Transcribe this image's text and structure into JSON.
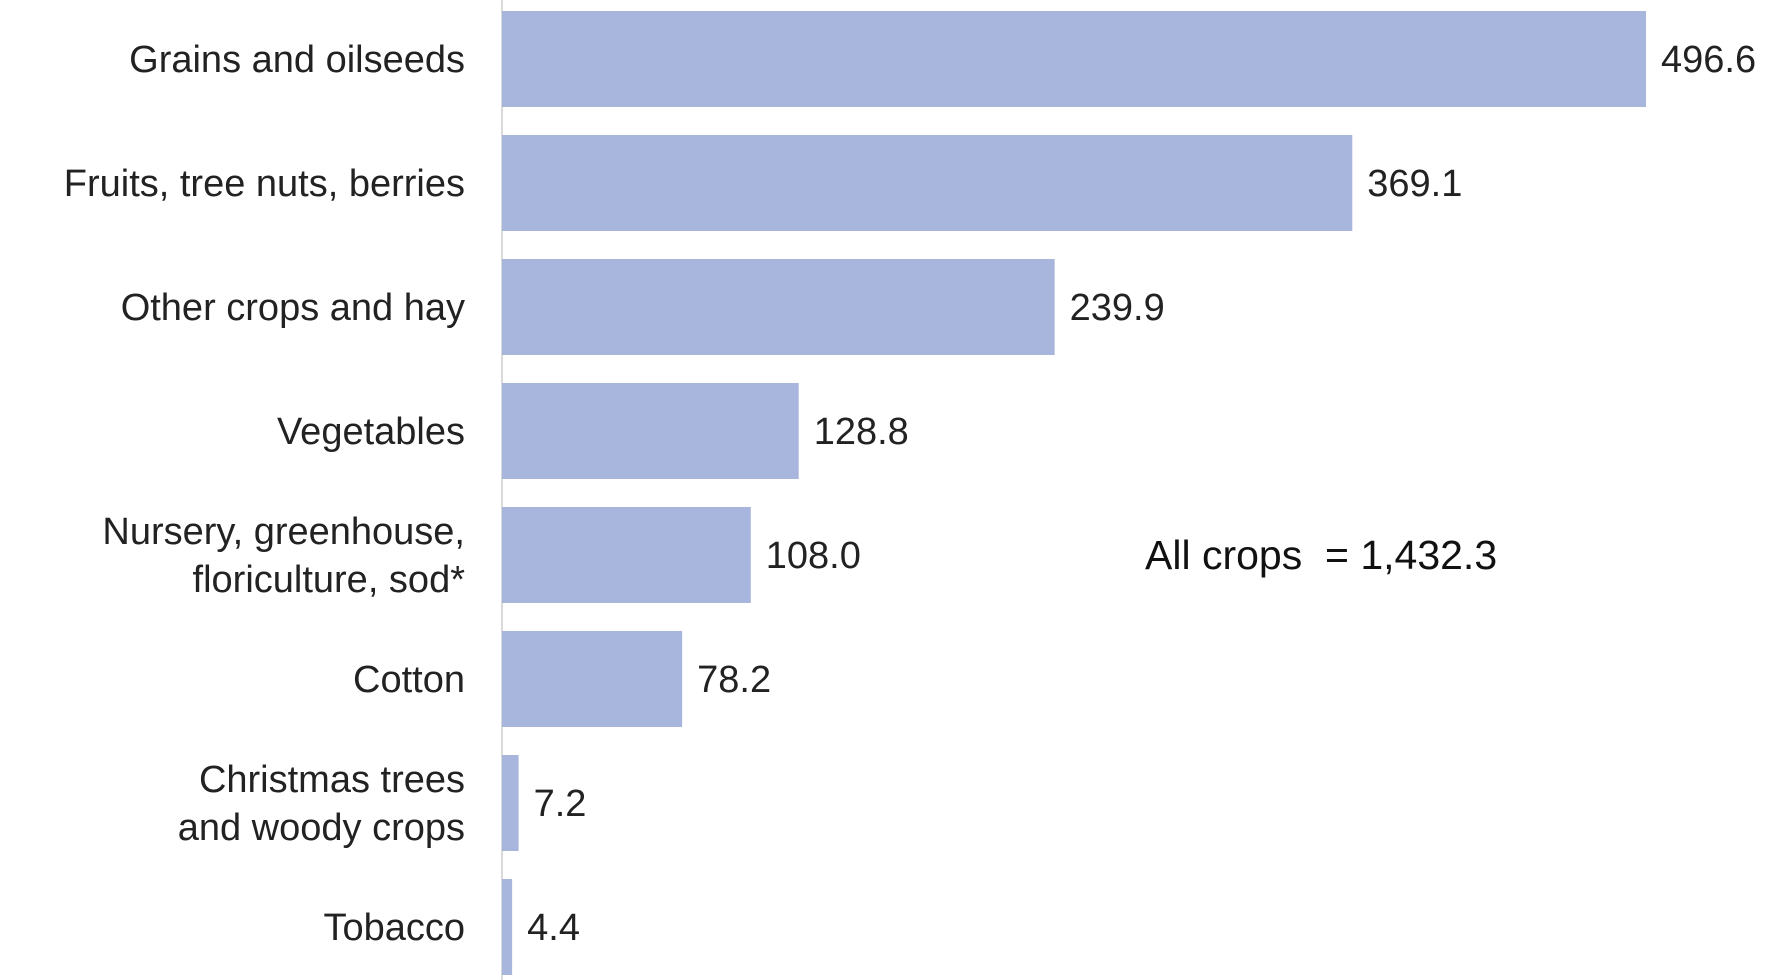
{
  "chart_data": {
    "type": "bar",
    "orientation": "horizontal",
    "categories": [
      [
        "Grains and oilseeds"
      ],
      [
        "Fruits, tree nuts, berries"
      ],
      [
        "Other crops and hay"
      ],
      [
        "Vegetables"
      ],
      [
        "Nursery, greenhouse,",
        "floriculture, sod*"
      ],
      [
        "Cotton"
      ],
      [
        "Christmas trees",
        "and woody crops"
      ],
      [
        "Tobacco"
      ]
    ],
    "values": [
      496.6,
      369.1,
      239.9,
      128.8,
      108.0,
      78.2,
      7.2,
      4.4
    ],
    "value_labels": [
      "496.6",
      "369.1",
      "239.9",
      "128.8",
      "108.0",
      "78.2",
      "7.2",
      "4.4"
    ],
    "annotation": "All crops  = 1,432.3",
    "bar_color": "#a8b5dc",
    "axis_color": "#d9d9d9",
    "xlim": [
      0,
      500
    ],
    "grid": false
  }
}
